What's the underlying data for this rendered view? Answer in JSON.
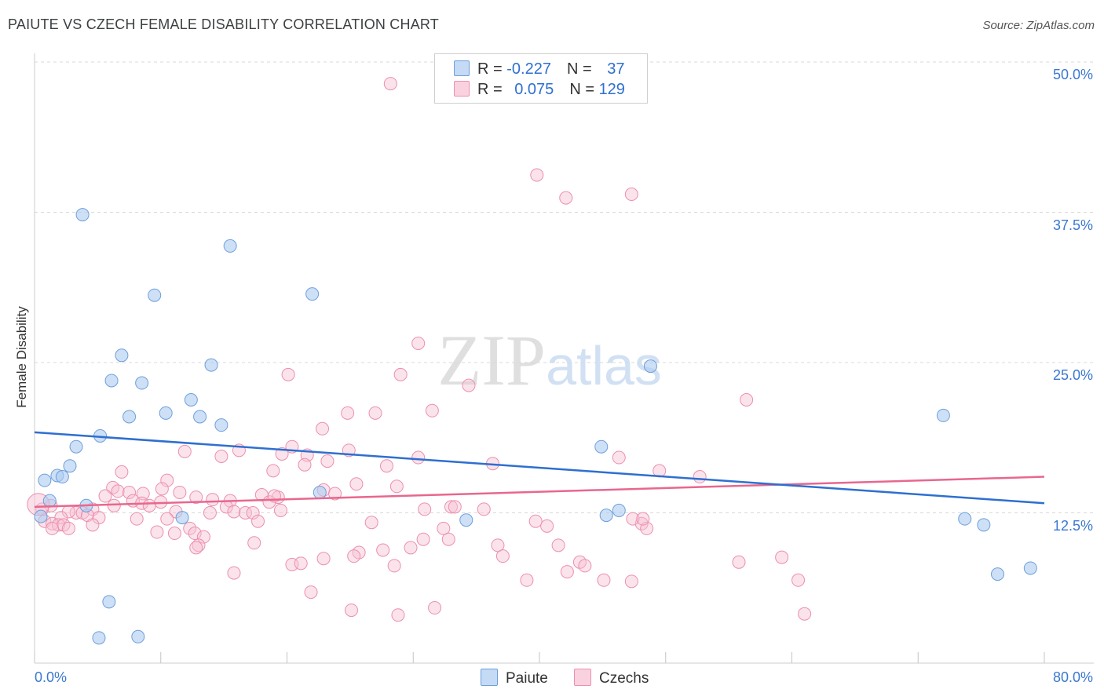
{
  "title": "PAIUTE VS CZECH FEMALE DISABILITY CORRELATION CHART",
  "source": "Source: ZipAtlas.com",
  "watermark": {
    "part1": "ZIP",
    "part2": "atlas"
  },
  "legend_top": {
    "rows": [
      {
        "r_label": "R = ",
        "r_value": "-0.227",
        "n_label": "N = ",
        "n_value": "37",
        "color": "#8ab4e8"
      },
      {
        "r_label": "R = ",
        "r_value": "0.075",
        "n_label": "N = ",
        "n_value": "129",
        "color": "#f4a6bf"
      }
    ]
  },
  "legend_bottom": {
    "paiute": "Paiute",
    "czechs": "Czechs"
  },
  "colors": {
    "paiute_fill": "#aecbf0",
    "paiute_stroke": "#6d9fdc",
    "paiute_line": "#2e6fd0",
    "czech_fill": "#f7c2d3",
    "czech_stroke": "#ec8fae",
    "czech_line": "#e8678f",
    "grid": "#d9d9d9",
    "tick_text": "#3b78d0"
  },
  "chart_data": {
    "type": "scatter",
    "title": "PAIUTE VS CZECH FEMALE DISABILITY CORRELATION CHART",
    "xlabel": "",
    "ylabel": "Female Disability",
    "xlim": [
      0,
      80
    ],
    "ylim": [
      0,
      50
    ],
    "x_tick_labels": [
      "0.0%",
      "80.0%"
    ],
    "y_ticks": [
      12.5,
      25.0,
      37.5,
      50.0
    ],
    "y_tick_labels": [
      "12.5%",
      "25.0%",
      "37.5%",
      "50.0%"
    ],
    "series": [
      {
        "name": "Paiute",
        "R": -0.227,
        "N": 37,
        "trend": {
          "x": [
            0,
            80
          ],
          "y": [
            19.2,
            13.3
          ]
        },
        "points": [
          [
            3.8,
            37.3
          ],
          [
            15.5,
            34.7
          ],
          [
            9.5,
            30.6
          ],
          [
            22.0,
            30.7
          ],
          [
            6.9,
            25.6
          ],
          [
            14.0,
            24.8
          ],
          [
            6.1,
            23.5
          ],
          [
            8.5,
            23.3
          ],
          [
            12.4,
            21.9
          ],
          [
            10.4,
            20.8
          ],
          [
            7.5,
            20.5
          ],
          [
            13.1,
            20.5
          ],
          [
            14.8,
            19.8
          ],
          [
            5.2,
            18.9
          ],
          [
            3.3,
            18.0
          ],
          [
            2.8,
            16.4
          ],
          [
            1.8,
            15.6
          ],
          [
            2.2,
            15.5
          ],
          [
            0.8,
            15.2
          ],
          [
            1.2,
            13.5
          ],
          [
            4.1,
            13.1
          ],
          [
            0.5,
            12.2
          ],
          [
            11.7,
            12.1
          ],
          [
            22.6,
            14.2
          ],
          [
            34.2,
            11.9
          ],
          [
            44.9,
            18.0
          ],
          [
            45.3,
            12.3
          ],
          [
            46.3,
            12.7
          ],
          [
            48.8,
            24.7
          ],
          [
            72.0,
            20.6
          ],
          [
            73.7,
            12.0
          ],
          [
            75.2,
            11.5
          ],
          [
            76.3,
            7.4
          ],
          [
            78.9,
            7.9
          ],
          [
            5.9,
            5.1
          ],
          [
            5.1,
            2.1
          ],
          [
            8.2,
            2.2
          ]
        ]
      },
      {
        "name": "Czechs",
        "R": 0.075,
        "N": 129,
        "trend": {
          "x": [
            0,
            80
          ],
          "y": [
            13.0,
            15.5
          ]
        },
        "points": [
          [
            28.2,
            48.2
          ],
          [
            39.8,
            40.6
          ],
          [
            47.3,
            39.0
          ],
          [
            42.1,
            38.7
          ],
          [
            30.4,
            26.6
          ],
          [
            20.1,
            24.0
          ],
          [
            29.0,
            24.0
          ],
          [
            34.4,
            23.1
          ],
          [
            56.4,
            21.9
          ],
          [
            24.8,
            20.8
          ],
          [
            27.0,
            20.8
          ],
          [
            31.5,
            21.0
          ],
          [
            22.8,
            19.5
          ],
          [
            20.4,
            18.0
          ],
          [
            24.9,
            17.7
          ],
          [
            16.2,
            17.7
          ],
          [
            11.9,
            17.6
          ],
          [
            19.6,
            17.4
          ],
          [
            14.8,
            17.2
          ],
          [
            21.6,
            17.3
          ],
          [
            30.4,
            17.1
          ],
          [
            46.3,
            17.1
          ],
          [
            21.4,
            16.5
          ],
          [
            23.2,
            16.8
          ],
          [
            27.9,
            16.4
          ],
          [
            36.3,
            16.6
          ],
          [
            18.9,
            16.0
          ],
          [
            49.5,
            16.0
          ],
          [
            52.7,
            15.5
          ],
          [
            6.9,
            15.9
          ],
          [
            10.5,
            15.2
          ],
          [
            25.5,
            14.9
          ],
          [
            28.7,
            14.7
          ],
          [
            6.2,
            14.6
          ],
          [
            6.6,
            14.3
          ],
          [
            7.5,
            14.2
          ],
          [
            10.1,
            14.5
          ],
          [
            11.5,
            14.2
          ],
          [
            8.6,
            14.1
          ],
          [
            22.9,
            14.4
          ],
          [
            23.8,
            14.1
          ],
          [
            18.0,
            14.0
          ],
          [
            5.6,
            13.9
          ],
          [
            12.8,
            13.8
          ],
          [
            19.3,
            13.8
          ],
          [
            15.5,
            13.5
          ],
          [
            18.6,
            13.4
          ],
          [
            7.8,
            13.5
          ],
          [
            8.5,
            13.3
          ],
          [
            10.0,
            13.4
          ],
          [
            15.2,
            13.0
          ],
          [
            1.3,
            13.1
          ],
          [
            6.3,
            13.1
          ],
          [
            9.1,
            13.1
          ],
          [
            0.6,
            12.8
          ],
          [
            4.6,
            12.8
          ],
          [
            3.3,
            12.5
          ],
          [
            13.9,
            12.5
          ],
          [
            11.2,
            12.6
          ],
          [
            15.8,
            12.6
          ],
          [
            16.7,
            12.5
          ],
          [
            17.3,
            12.5
          ],
          [
            19.5,
            12.7
          ],
          [
            33.0,
            13.0
          ],
          [
            33.3,
            13.0
          ],
          [
            2.7,
            12.6
          ],
          [
            3.8,
            12.5
          ],
          [
            4.2,
            12.3
          ],
          [
            2.1,
            12.1
          ],
          [
            5.1,
            12.1
          ],
          [
            0.8,
            11.8
          ],
          [
            8.1,
            12.0
          ],
          [
            10.5,
            12.0
          ],
          [
            17.7,
            11.8
          ],
          [
            26.7,
            11.7
          ],
          [
            39.7,
            11.8
          ],
          [
            40.6,
            11.4
          ],
          [
            48.1,
            11.6
          ],
          [
            48.5,
            11.2
          ],
          [
            1.4,
            11.6
          ],
          [
            1.9,
            11.5
          ],
          [
            2.3,
            11.5
          ],
          [
            1.4,
            11.2
          ],
          [
            2.7,
            11.2
          ],
          [
            4.6,
            11.5
          ],
          [
            12.3,
            11.2
          ],
          [
            32.4,
            11.2
          ],
          [
            9.7,
            10.9
          ],
          [
            11.1,
            10.8
          ],
          [
            12.7,
            10.8
          ],
          [
            13.4,
            10.5
          ],
          [
            32.8,
            10.3
          ],
          [
            30.8,
            10.3
          ],
          [
            17.4,
            10.0
          ],
          [
            36.7,
            9.8
          ],
          [
            41.5,
            9.8
          ],
          [
            13.0,
            9.8
          ],
          [
            12.8,
            9.6
          ],
          [
            29.8,
            9.6
          ],
          [
            27.6,
            9.4
          ],
          [
            25.7,
            9.2
          ],
          [
            25.3,
            8.9
          ],
          [
            37.1,
            8.9
          ],
          [
            22.9,
            8.7
          ],
          [
            55.8,
            8.4
          ],
          [
            59.2,
            8.8
          ],
          [
            43.2,
            8.4
          ],
          [
            20.4,
            8.2
          ],
          [
            21.1,
            8.3
          ],
          [
            28.5,
            8.1
          ],
          [
            43.6,
            8.1
          ],
          [
            42.2,
            7.6
          ],
          [
            15.8,
            7.5
          ],
          [
            39.0,
            6.9
          ],
          [
            45.1,
            6.9
          ],
          [
            47.3,
            6.8
          ],
          [
            60.5,
            6.9
          ],
          [
            21.9,
            5.9
          ],
          [
            25.1,
            4.4
          ],
          [
            31.7,
            4.6
          ],
          [
            28.8,
            4.0
          ],
          [
            61.0,
            4.1
          ],
          [
            47.4,
            12.0
          ],
          [
            48.2,
            12.0
          ],
          [
            30.9,
            12.8
          ],
          [
            35.6,
            12.8
          ],
          [
            19.0,
            13.9
          ],
          [
            14.1,
            13.6
          ],
          [
            0.3,
            13.2
          ]
        ]
      }
    ]
  }
}
